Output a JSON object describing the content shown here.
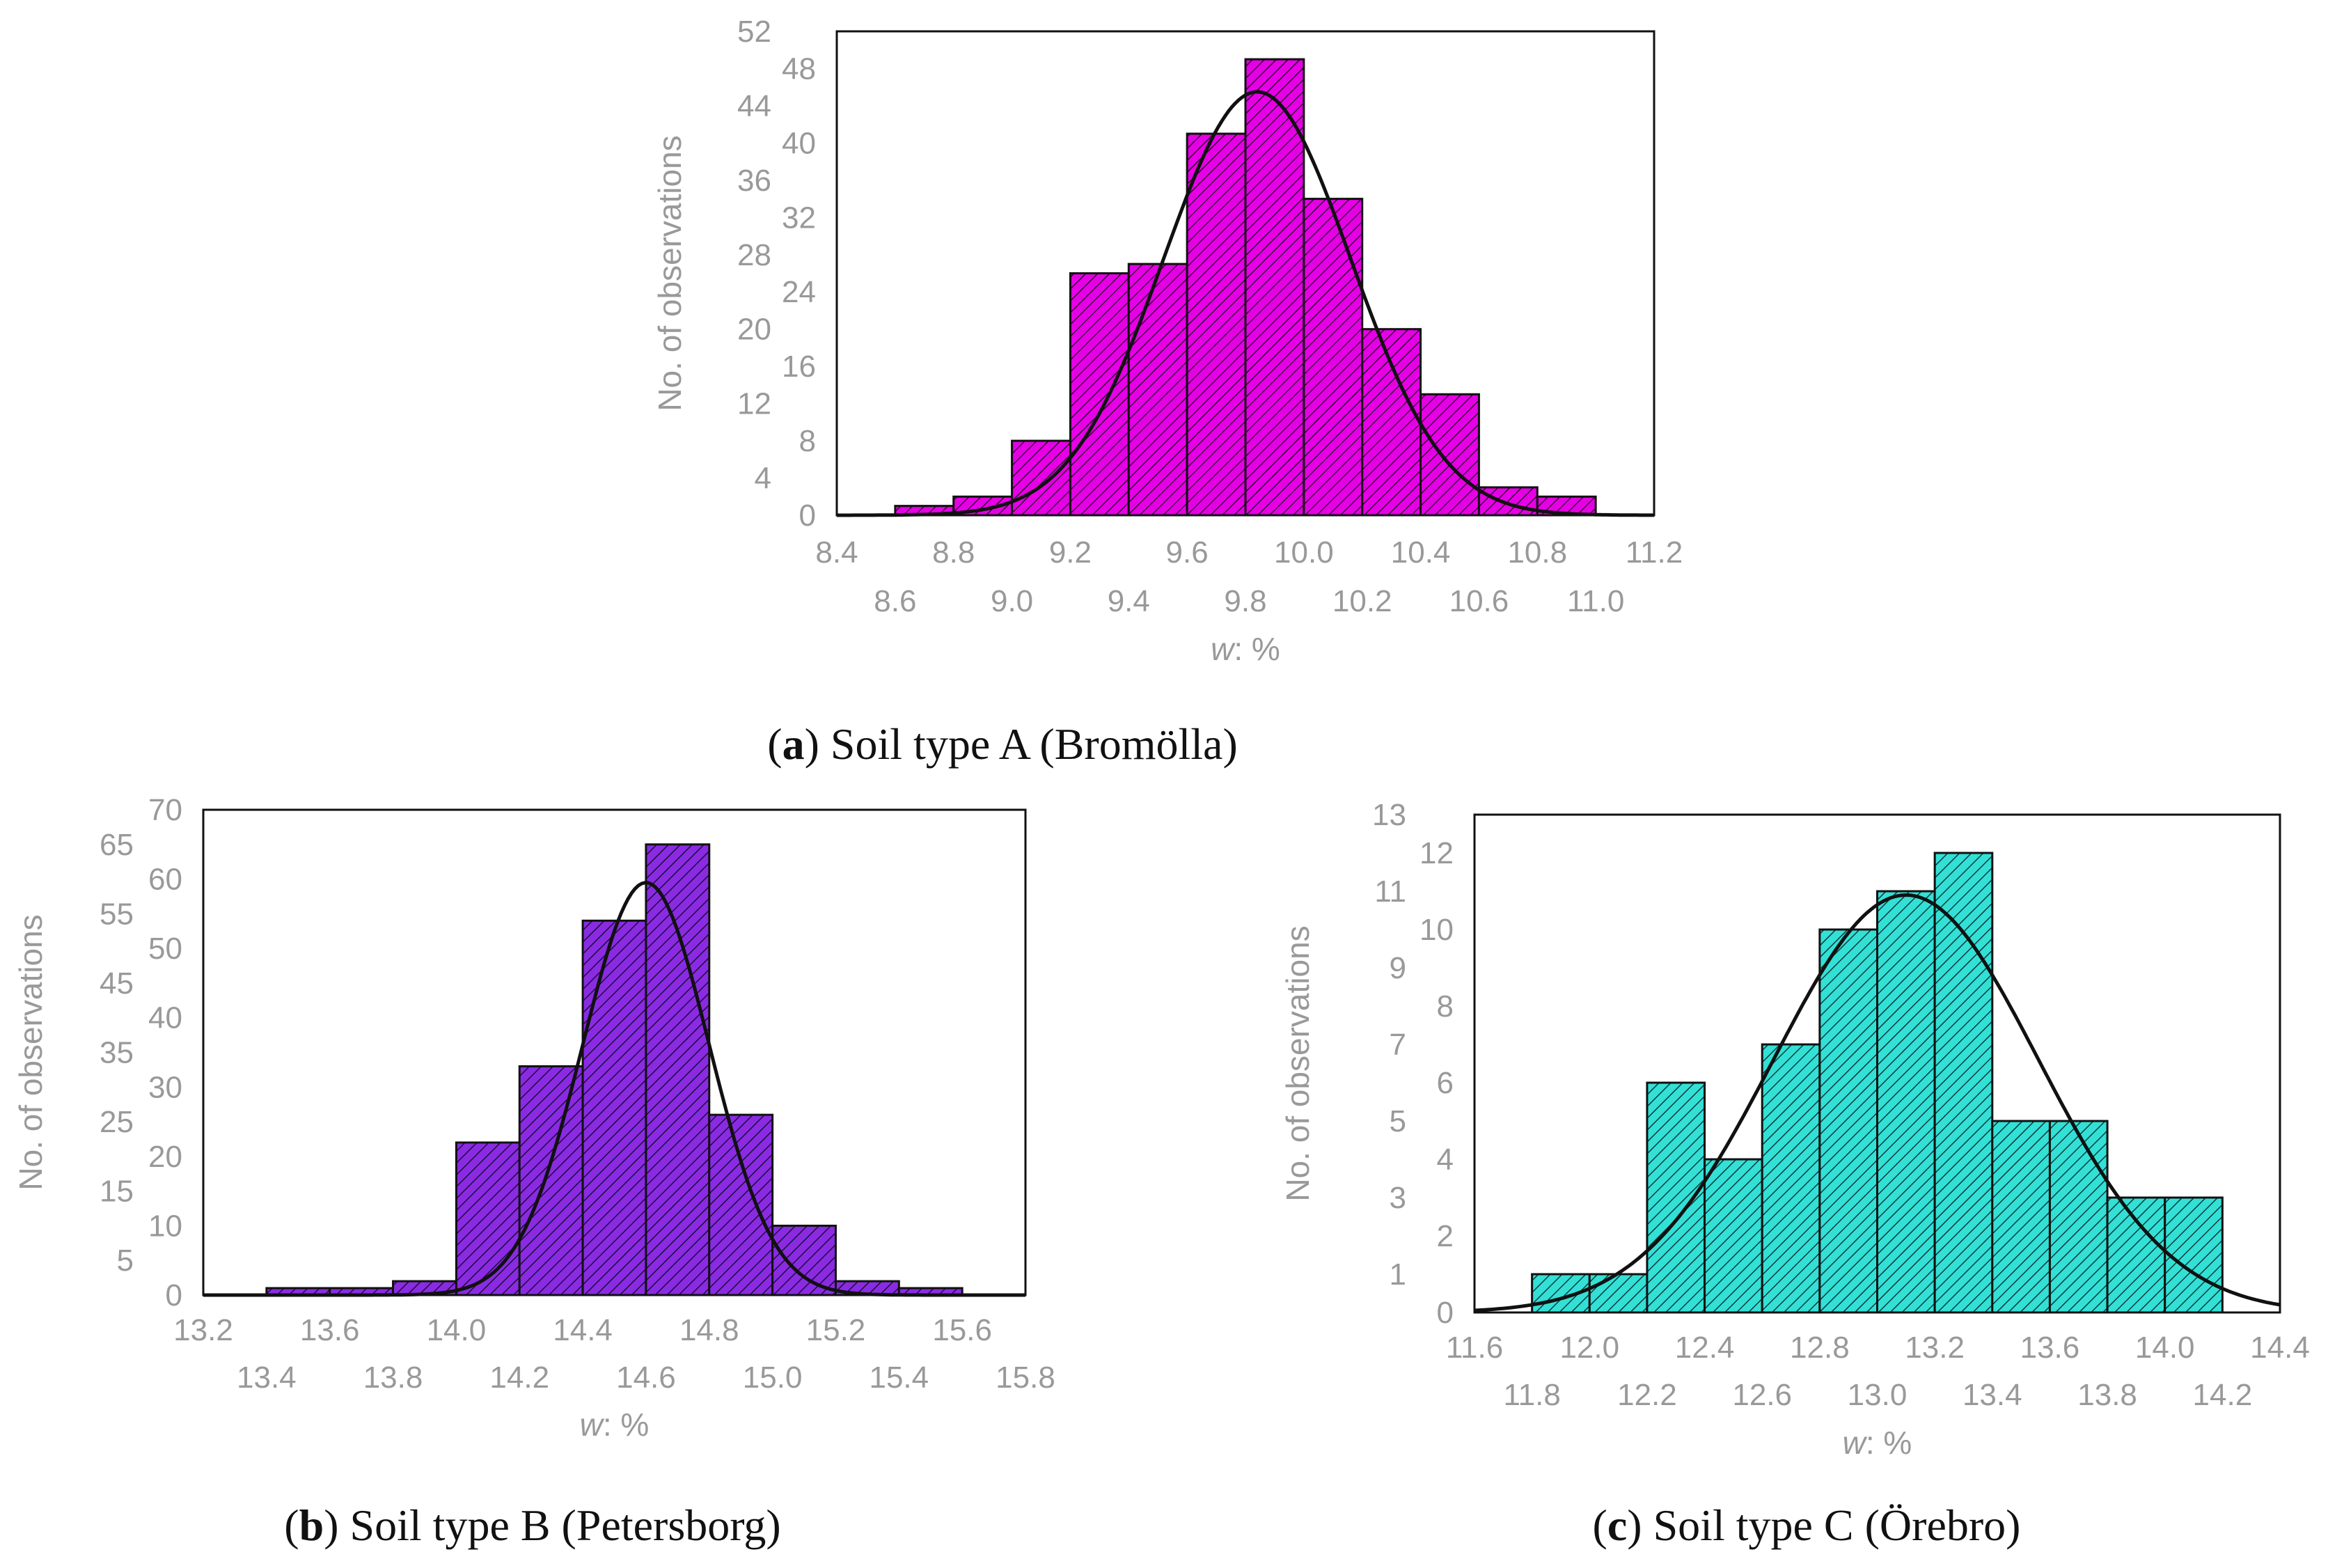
{
  "figure": {
    "captions": [
      {
        "letter": "a",
        "text": ") Soil type A (Bromölla)",
        "open": "("
      },
      {
        "letter": "b",
        "text": ") Soil type B (Petersborg)",
        "open": "("
      },
      {
        "letter": "c",
        "text": ") Soil type C (Örebro)",
        "open": "("
      }
    ]
  },
  "chart_data": [
    {
      "id": "a",
      "type": "bar",
      "title": "Soil type A (Bromölla)",
      "xlabel_italic": "w",
      "xlabel_rest": ": %",
      "ylabel": "No. of observations",
      "xlim": [
        8.4,
        11.2
      ],
      "ylim": [
        0,
        52
      ],
      "color": "#e600e6",
      "hatch": "#3a003a",
      "bin_edges_start": 8.6,
      "bin_width": 0.2,
      "values": [
        1,
        2,
        8,
        26,
        27,
        41,
        49,
        34,
        20,
        13,
        3,
        2
      ],
      "fit": {
        "mean": 9.84,
        "sd": 0.32,
        "peak": 45.5
      },
      "x_ticks_upper": [
        "8.4",
        "8.8",
        "9.2",
        "9.6",
        "10.0",
        "10.4",
        "10.8",
        "11.2"
      ],
      "x_ticks_lower": [
        "8.6",
        "9.0",
        "9.4",
        "9.8",
        "10.2",
        "10.6",
        "11.0"
      ],
      "y_ticks_left": [
        "0",
        "8",
        "16",
        "24",
        "32",
        "40",
        "48"
      ],
      "y_ticks_right": [
        "4",
        "12",
        "20",
        "28",
        "36",
        "44",
        "52"
      ]
    },
    {
      "id": "b",
      "type": "bar",
      "title": "Soil type B (Petersborg)",
      "xlabel_italic": "w",
      "xlabel_rest": ": %",
      "ylabel": "No. of observations",
      "xlim": [
        13.2,
        15.8
      ],
      "ylim": [
        0,
        70
      ],
      "color": "#8a2be2",
      "hatch": "#1e0a40",
      "bin_edges_start": 13.4,
      "bin_width": 0.2,
      "values": [
        1,
        1,
        2,
        22,
        33,
        54,
        65,
        26,
        10,
        2,
        1
      ],
      "fit": {
        "mean": 14.6,
        "sd": 0.2,
        "peak": 59.5
      },
      "x_ticks_upper": [
        "13.2",
        "13.6",
        "14.0",
        "14.4",
        "14.8",
        "15.2",
        "15.6"
      ],
      "x_ticks_lower": [
        "13.4",
        "13.8",
        "14.2",
        "14.6",
        "15.0",
        "15.4",
        "15.8"
      ],
      "y_ticks_left": [
        "0",
        "10",
        "20",
        "30",
        "40",
        "50",
        "60",
        "70"
      ],
      "y_ticks_right": [
        "5",
        "15",
        "25",
        "35",
        "45",
        "55",
        "65"
      ]
    },
    {
      "id": "c",
      "type": "bar",
      "title": "Soil type C (Örebro)",
      "xlabel_italic": "w",
      "xlabel_rest": ": %",
      "ylabel": "No. of observations",
      "xlim": [
        11.6,
        14.4
      ],
      "ylim": [
        0,
        13
      ],
      "color": "#33e0d6",
      "hatch": "#0a3a38",
      "bin_edges_start": 11.8,
      "bin_width": 0.2,
      "values": [
        1,
        1,
        6,
        4,
        7,
        10,
        11,
        12,
        5,
        5,
        3,
        3
      ],
      "fit": {
        "mean": 13.1,
        "sd": 0.46,
        "peak": 10.9
      },
      "x_ticks_upper": [
        "11.6",
        "12.0",
        "12.4",
        "12.8",
        "13.2",
        "13.6",
        "14.0",
        "14.4"
      ],
      "x_ticks_lower": [
        "11.8",
        "12.2",
        "12.6",
        "13.0",
        "13.4",
        "13.8",
        "14.2"
      ],
      "y_ticks_left": [
        "0",
        "2",
        "4",
        "6",
        "8",
        "10",
        "12"
      ],
      "y_ticks_right": [
        "1",
        "3",
        "5",
        "7",
        "9",
        "11",
        "13"
      ]
    }
  ]
}
